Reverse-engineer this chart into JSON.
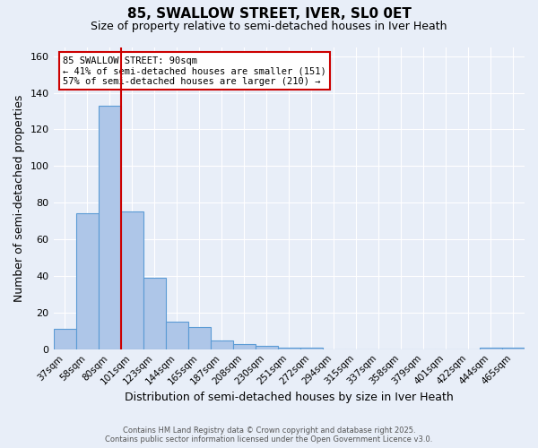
{
  "title1": "85, SWALLOW STREET, IVER, SL0 0ET",
  "title2": "Size of property relative to semi-detached houses in Iver Heath",
  "xlabel": "Distribution of semi-detached houses by size in Iver Heath",
  "ylabel": "Number of semi-detached properties",
  "categories": [
    "37sqm",
    "58sqm",
    "80sqm",
    "101sqm",
    "123sqm",
    "144sqm",
    "165sqm",
    "187sqm",
    "208sqm",
    "230sqm",
    "251sqm",
    "272sqm",
    "294sqm",
    "315sqm",
    "337sqm",
    "358sqm",
    "379sqm",
    "401sqm",
    "422sqm",
    "444sqm",
    "465sqm"
  ],
  "values": [
    11,
    74,
    133,
    75,
    39,
    15,
    12,
    5,
    3,
    2,
    1,
    1,
    0,
    0,
    0,
    0,
    0,
    0,
    0,
    1,
    1
  ],
  "bar_color": "#aec6e8",
  "bar_edge_color": "#5b9bd5",
  "red_line_index": 2.5,
  "annotation_title": "85 SWALLOW STREET: 90sqm",
  "annotation_line1": "← 41% of semi-detached houses are smaller (151)",
  "annotation_line2": "57% of semi-detached houses are larger (210) →",
  "annotation_box_color": "#ffffff",
  "annotation_box_edge": "#cc0000",
  "footnote1": "Contains HM Land Registry data © Crown copyright and database right 2025.",
  "footnote2": "Contains public sector information licensed under the Open Government Licence v3.0.",
  "ylim": [
    0,
    165
  ],
  "background_color": "#e8eef8",
  "grid_color": "#ffffff",
  "title1_fontsize": 11,
  "title2_fontsize": 9
}
